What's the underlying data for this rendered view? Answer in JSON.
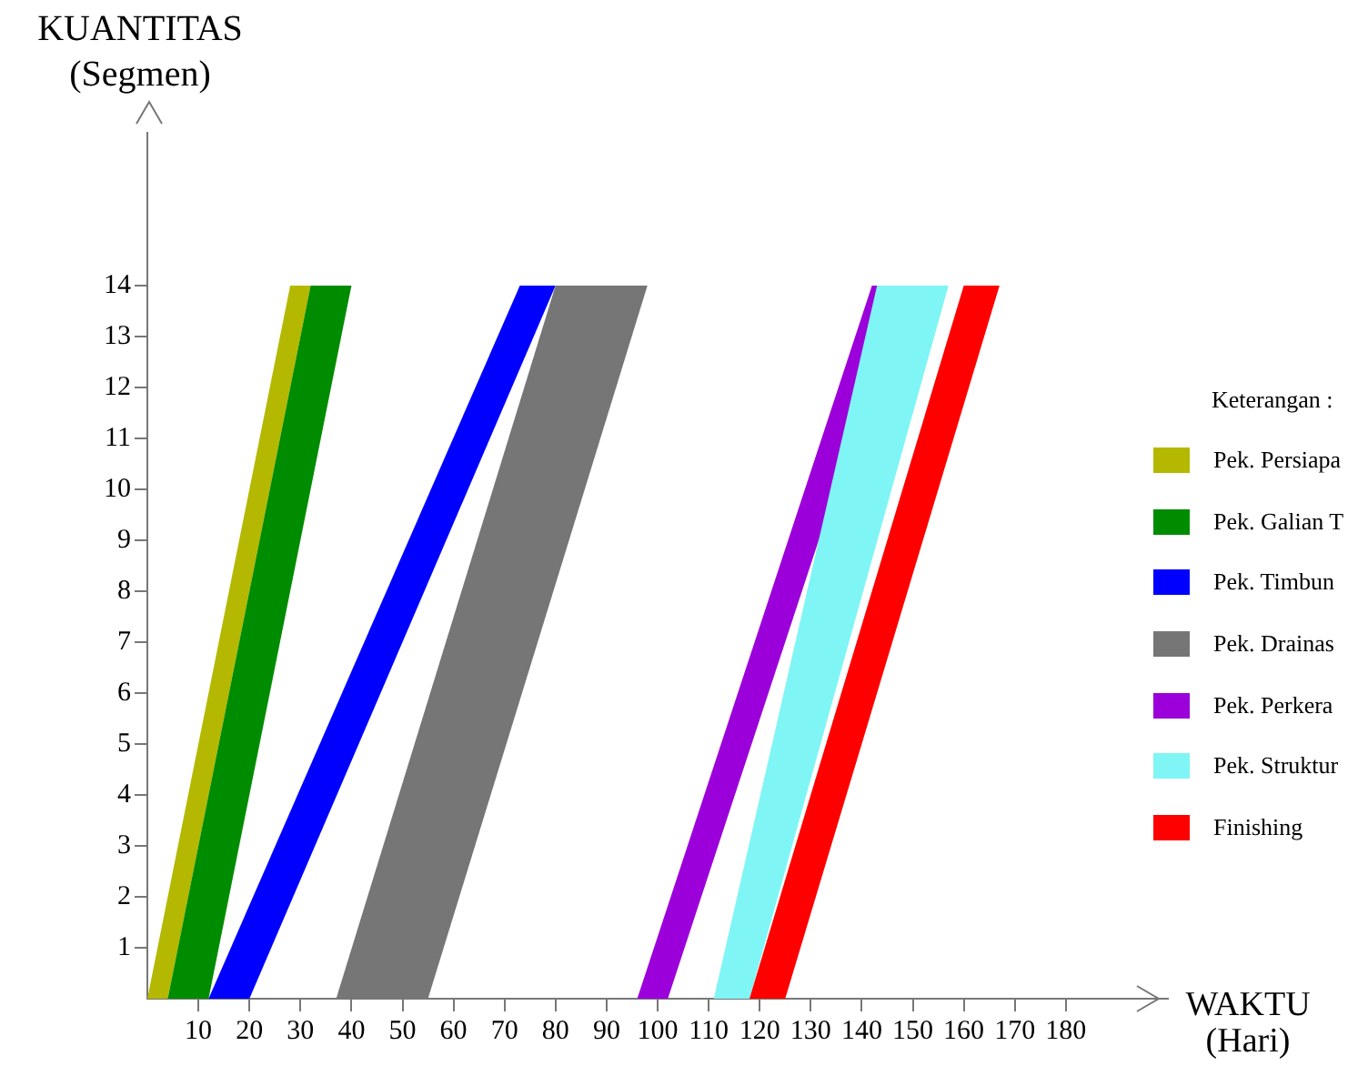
{
  "chart_data": {
    "type": "area",
    "xlabel": "WAKTU\n(Hari)",
    "ylabel": "KUANTITAS\n(Segmen)",
    "legend_title": "Keterangan :",
    "legend": "right",
    "xlim": [
      0,
      200
    ],
    "ylim": [
      0,
      17
    ],
    "xticks": [
      10,
      20,
      30,
      40,
      50,
      60,
      70,
      80,
      90,
      100,
      110,
      120,
      130,
      140,
      150,
      160,
      170,
      180
    ],
    "yticks": [
      1,
      2,
      3,
      4,
      5,
      6,
      7,
      8,
      9,
      10,
      11,
      12,
      13,
      14
    ],
    "series": [
      {
        "name": "Pek. Persiapa",
        "color": "#b5b800",
        "x": [
          0,
          28,
          32,
          4
        ],
        "values": [
          0,
          14,
          14,
          0
        ]
      },
      {
        "name": "Pek. Galian T",
        "color": "#008c00",
        "x": [
          4,
          32,
          40,
          12
        ],
        "values": [
          0,
          14,
          14,
          0
        ]
      },
      {
        "name": "Pek. Timbun",
        "color": "#0000ff",
        "x": [
          12,
          73,
          80,
          20
        ],
        "values": [
          0,
          14,
          14,
          0
        ]
      },
      {
        "name": "Pek. Drainas",
        "color": "#767676",
        "x": [
          37,
          80,
          98,
          55
        ],
        "values": [
          0,
          14,
          14,
          0
        ]
      },
      {
        "name": "Pek. Perkera",
        "color": "#9b00db",
        "x": [
          96,
          142,
          148,
          102
        ],
        "values": [
          0,
          14,
          14,
          0
        ]
      },
      {
        "name": "Pek. Struktur",
        "color": "#80f5f5",
        "x": [
          111,
          143,
          157,
          118
        ],
        "values": [
          0,
          14,
          14,
          0
        ]
      },
      {
        "name": "Finishing",
        "color": "#ff0000",
        "x": [
          118,
          160,
          167,
          125
        ],
        "values": [
          0,
          14,
          14,
          0
        ]
      }
    ]
  }
}
